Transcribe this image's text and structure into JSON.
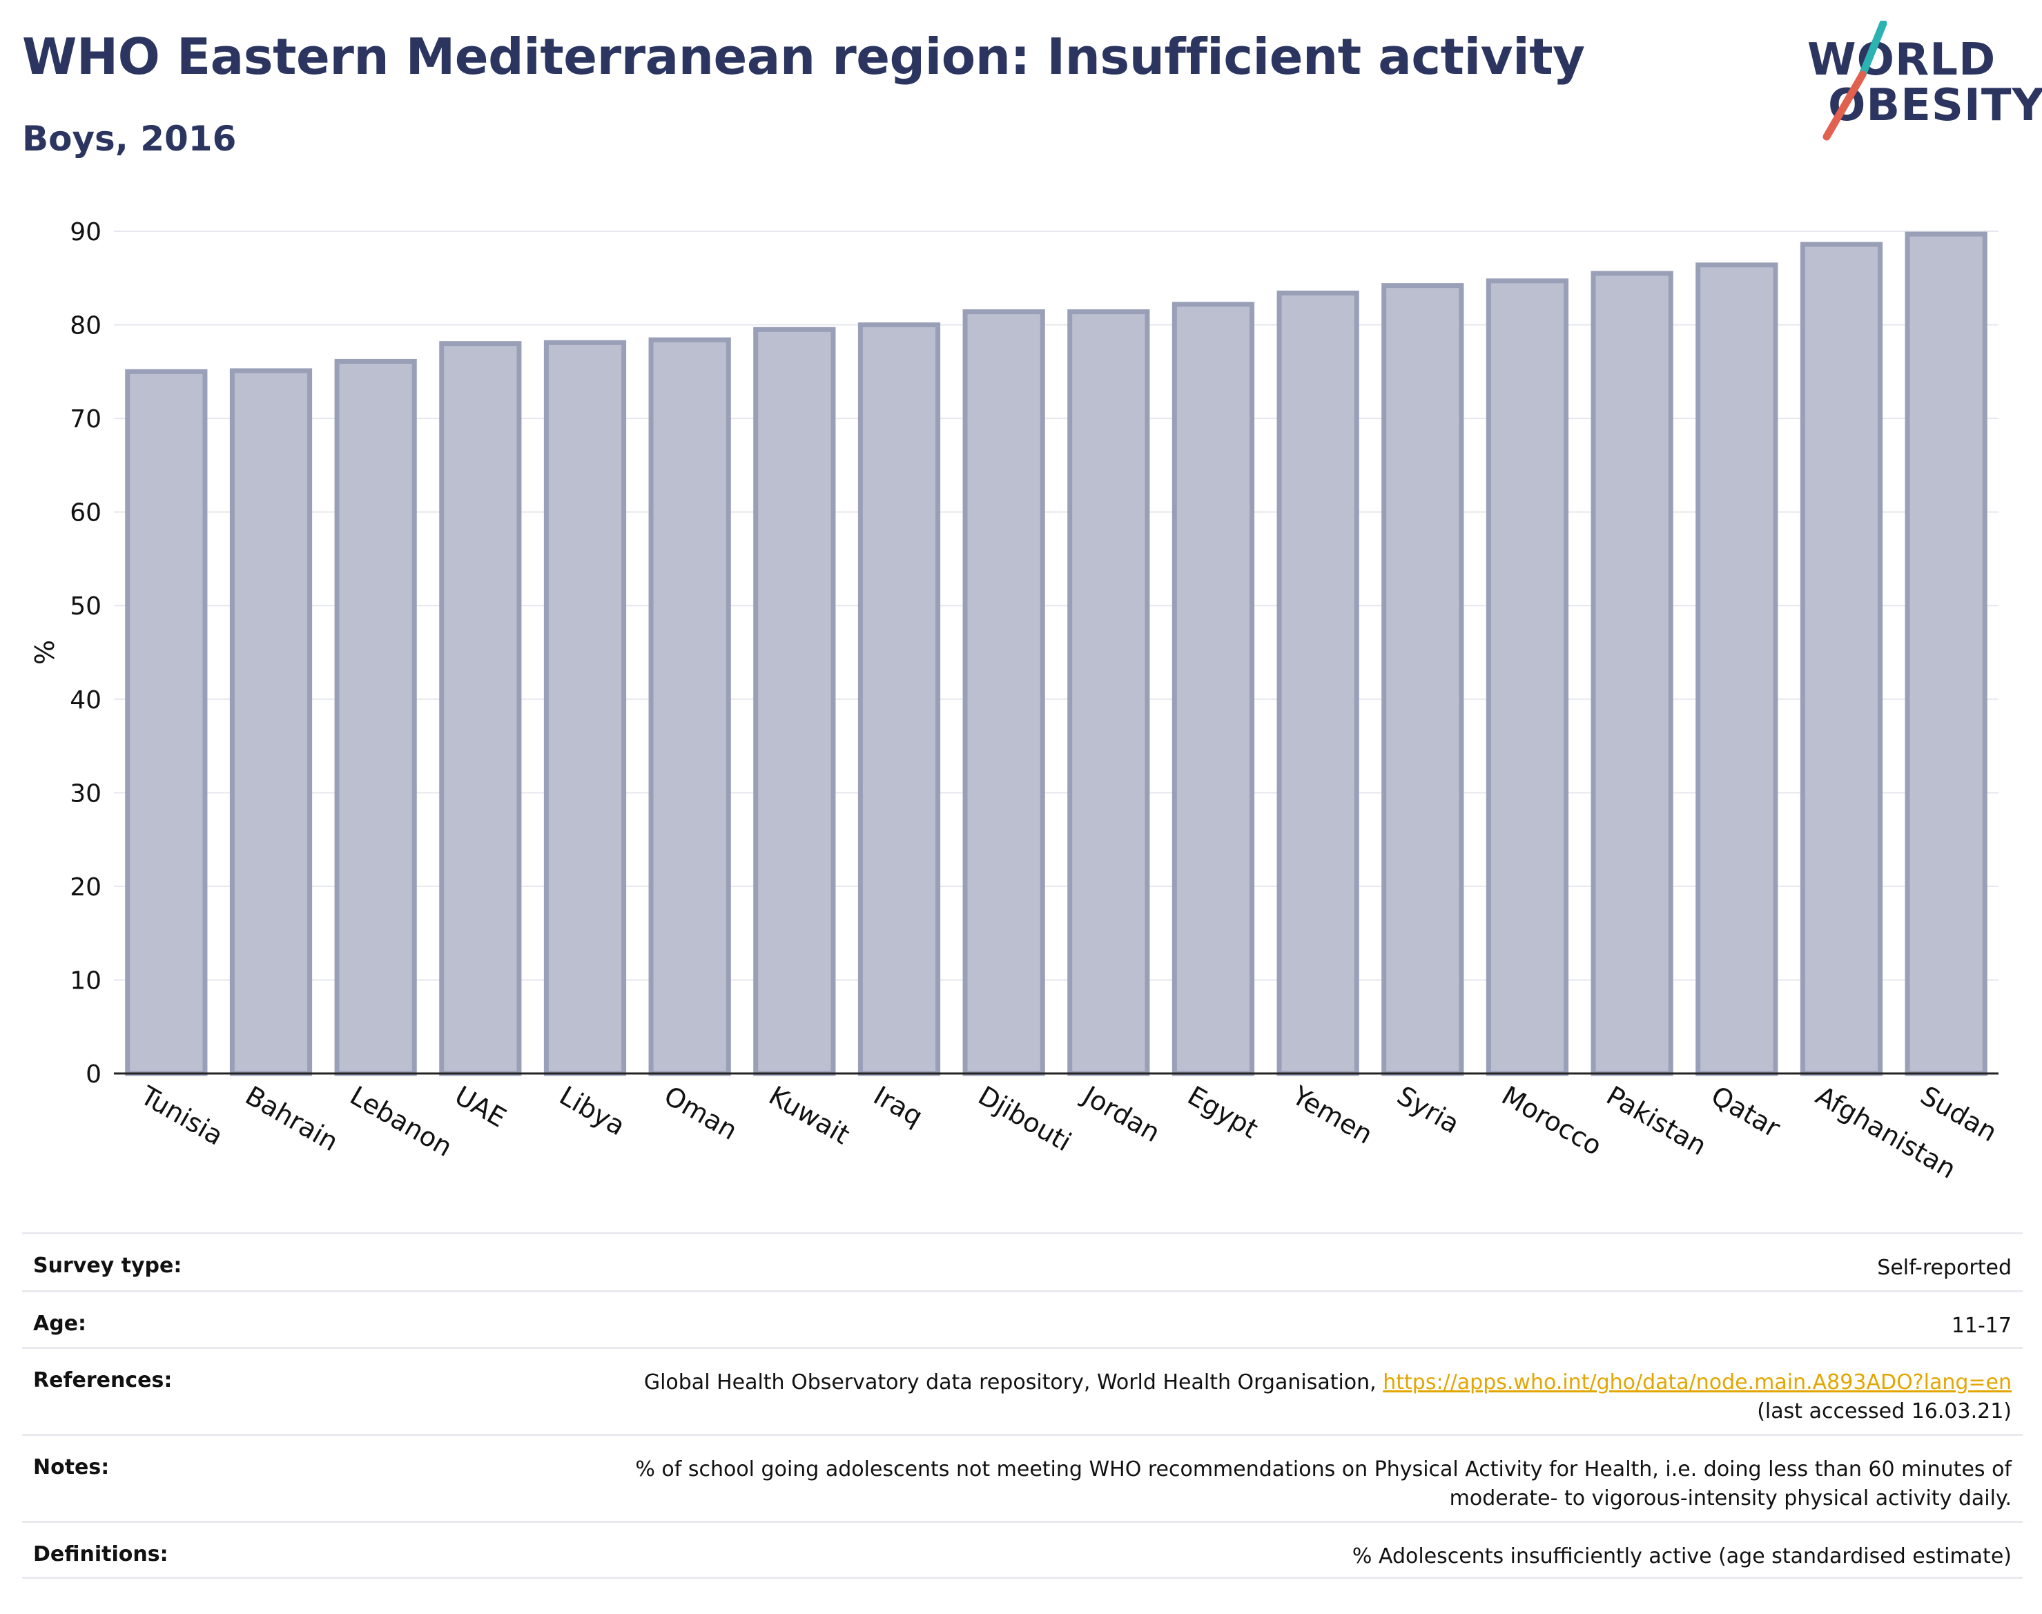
{
  "header": {
    "title": "WHO Eastern Mediterranean region: Insufficient activity",
    "subtitle": "Boys, 2016"
  },
  "logo": {
    "line1": "WORLD",
    "line2": "OBESITY",
    "accent1": "#2ab3b1",
    "accent2": "#e2604e"
  },
  "colors": {
    "bar_fill": "#bcbfcf",
    "bar_stroke": "#9a9fb8",
    "text_dark": "#2b3560",
    "axis": "#222222",
    "grid": "#e6e7ee"
  },
  "chart_data": {
    "type": "bar",
    "categories": [
      "Tunisia",
      "Bahrain",
      "Lebanon",
      "UAE",
      "Libya",
      "Oman",
      "Kuwait",
      "Iraq",
      "Djibouti",
      "Jordan",
      "Egypt",
      "Yemen",
      "Syria",
      "Morocco",
      "Pakistan",
      "Qatar",
      "Afghanistan",
      "Sudan"
    ],
    "values": [
      75.0,
      75.1,
      76.1,
      78.0,
      78.1,
      78.4,
      79.5,
      80.0,
      81.4,
      81.4,
      82.2,
      83.4,
      84.2,
      84.7,
      85.5,
      86.4,
      88.6,
      89.7
    ],
    "ylabel": "%",
    "xlabel": "",
    "ylim": [
      0,
      90
    ],
    "yticks": [
      0,
      10,
      20,
      30,
      40,
      50,
      60,
      70,
      80,
      90
    ],
    "grid": true,
    "legend": "none"
  },
  "meta": {
    "rows": [
      {
        "label": "Survey type:",
        "value": "Self-reported"
      },
      {
        "label": "Age:",
        "value": "11-17"
      },
      {
        "label": "References:",
        "value": "Global Health Observatory data repository, World Health Organisation,",
        "link": "https://apps.who.int/gho/data/node.main.A893ADO?lang=en",
        "value2": "(last accessed 16.03.21)"
      },
      {
        "label": "Notes:",
        "value": "% of school going adolescents not meeting WHO recommendations on Physical Activity for Health, i.e. doing less than 60 minutes of",
        "value2": "moderate- to vigorous-intensity physical activity daily."
      },
      {
        "label": "Definitions:",
        "value": "% Adolescents insufficiently active (age standardised estimate)"
      }
    ]
  }
}
